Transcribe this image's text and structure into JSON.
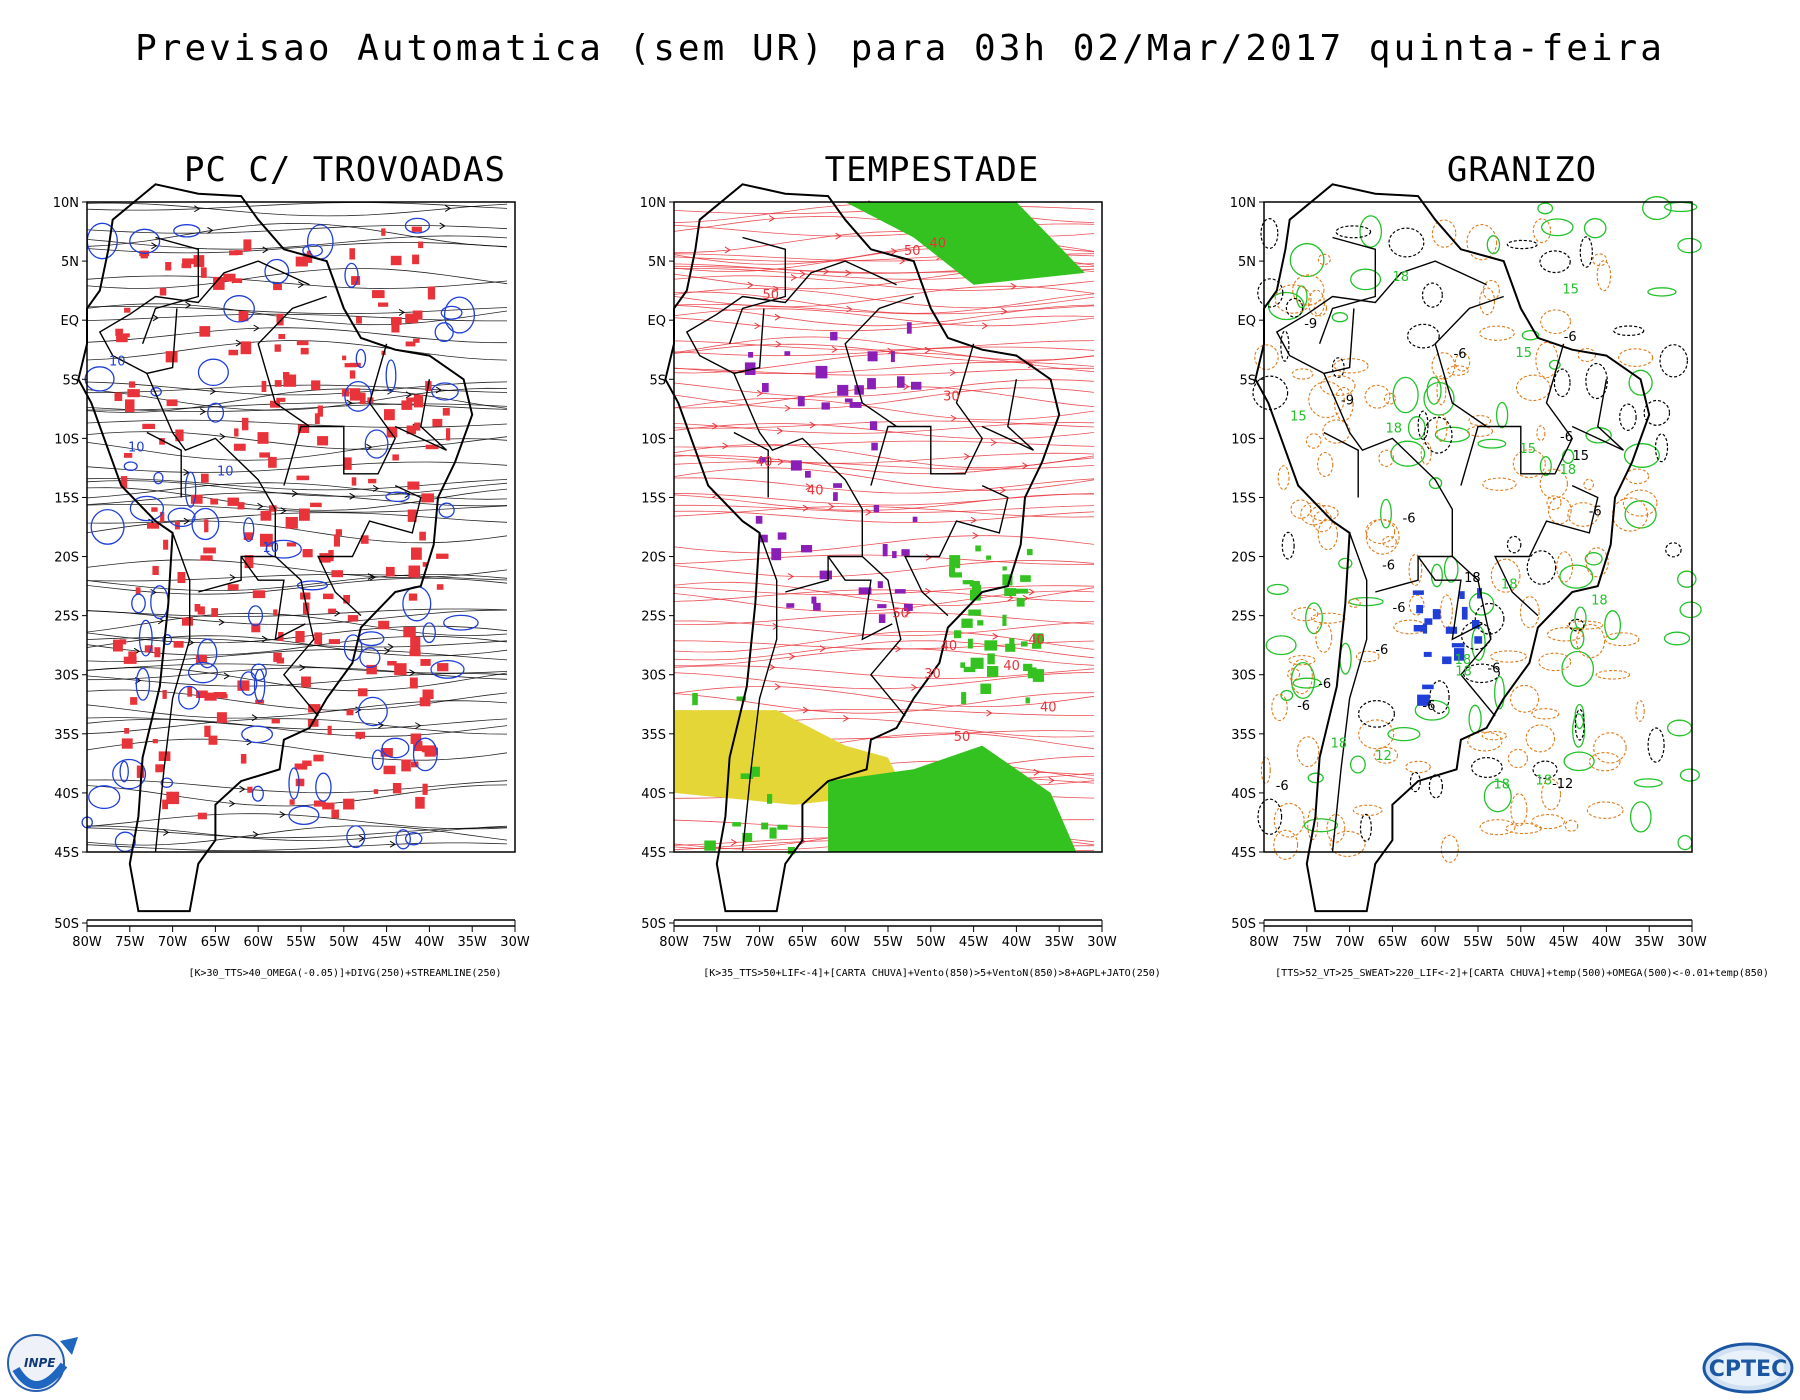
{
  "title": "Previsao Automatica (sem UR) para 03h 02/Mar/2017 quinta-feira",
  "axes": {
    "lat_labels": [
      "10N",
      "5N",
      "EQ",
      "5S",
      "10S",
      "15S",
      "20S",
      "25S",
      "30S",
      "35S",
      "40S",
      "45S",
      "50S"
    ],
    "lon_labels": [
      "80W",
      "75W",
      "70W",
      "65W",
      "60W",
      "55W",
      "50W",
      "45W",
      "40W",
      "35W",
      "30W"
    ]
  },
  "panels": [
    {
      "title": "PC C/ TROVOADAS",
      "caption": "[K>30_TTS>40_OMEGA(-0.05)]+DIVG(250)+STREAMLINE(250)",
      "contour_color": "#1f3fd8",
      "fill_color": "#e8333a",
      "contour_labels": [
        "10",
        "10",
        "10",
        "10"
      ]
    },
    {
      "title": "TEMPESTADE",
      "caption": "[K>35_TTS>50+LIF<-4]+[CARTA CHUVA]+Vento(850)>5+VentoN(850)>8+AGPL+JATO(250)",
      "contour_color": "#e8333a",
      "fill_color": "#33c21f",
      "fill_color_2": "#e5d638",
      "marker_color": "#8a1fb8",
      "contour_labels": [
        "40",
        "40",
        "50",
        "50",
        "40",
        "30",
        "50",
        "40",
        "50",
        "30",
        "40",
        "40",
        "40"
      ]
    },
    {
      "title": "GRANIZO",
      "caption": "[TTS>52_VT>25_SWEAT>220_LIF<-2]+[CARTA CHUVA]+temp(500)+OMEGA(500)<-0.01+temp(850)",
      "contour_color": "#22c22a",
      "contour_color_2": "#e07b1a",
      "marker_color": "#1f3fd8",
      "green_labels": [
        "18",
        "18",
        "18",
        "18",
        "18",
        "18",
        "18",
        "15",
        "18",
        "18",
        "18",
        "15",
        "15",
        "15",
        "12"
      ],
      "black_labels": [
        "-6",
        "-6",
        "-6",
        "-6",
        "-6",
        "-6",
        "-6",
        "-6",
        "-6",
        "-6",
        "-6",
        "-6",
        "-6",
        "-12",
        "-9",
        "-9",
        "15",
        "18"
      ]
    }
  ],
  "logos": {
    "left": "INPE",
    "right": "CPTEC"
  }
}
